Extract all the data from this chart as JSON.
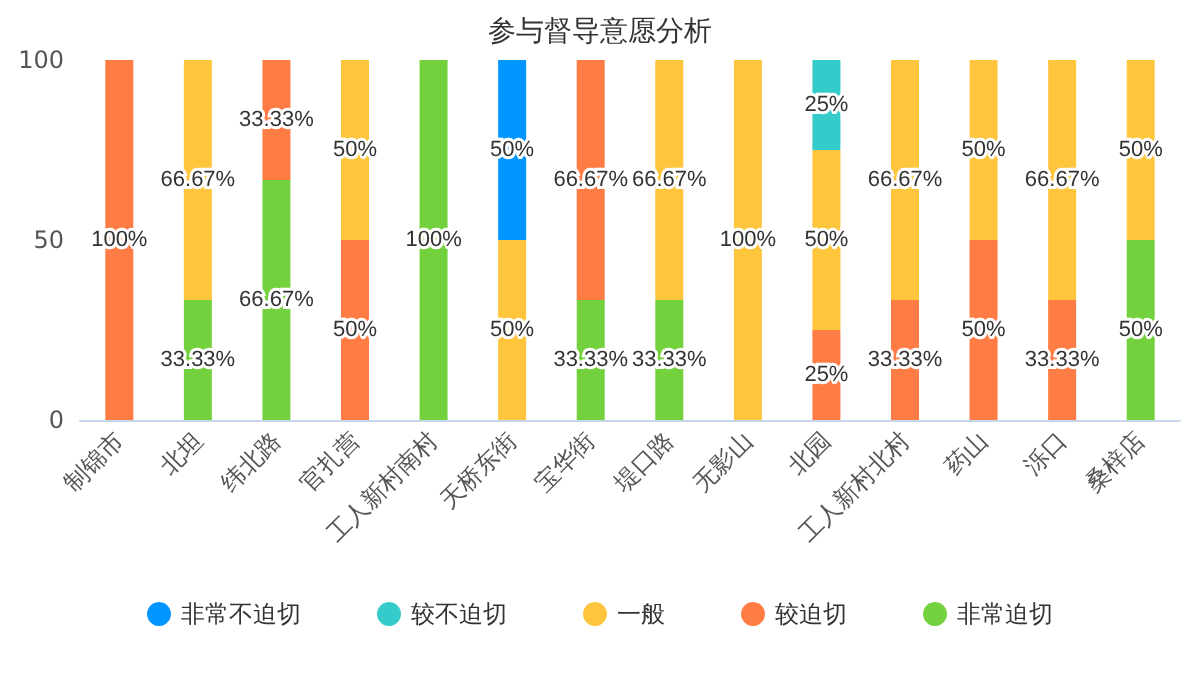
{
  "chart_data": {
    "type": "bar",
    "title": "参与督导意愿分析",
    "stacked": true,
    "legend": "bottom",
    "grid": false,
    "categories": [
      "制锦市",
      "北坦",
      "纬北路",
      "官扎营",
      "工人新村南村",
      "天桥东街",
      "宝华街",
      "堤口路",
      "无影山",
      "北园",
      "工人新村北村",
      "药山",
      "泺口",
      "桑梓店"
    ],
    "ylim": [
      0,
      100
    ],
    "yticks": [
      0,
      50,
      100
    ],
    "series": [
      {
        "name": "非常迫切",
        "color": "#73d13d",
        "values": [
          null,
          33.33,
          66.67,
          null,
          100,
          null,
          33.33,
          33.33,
          null,
          null,
          null,
          null,
          null,
          50
        ],
        "value_labels": [
          null,
          "33.33%",
          "66.67%",
          null,
          "100%",
          null,
          "33.33%",
          "33.33%",
          null,
          null,
          null,
          null,
          null,
          "50%"
        ]
      },
      {
        "name": "较迫切",
        "color": "#ff7c44",
        "values": [
          100,
          null,
          33.33,
          50,
          null,
          null,
          66.67,
          null,
          null,
          25,
          33.33,
          50,
          33.33,
          null
        ],
        "value_labels": [
          "100%",
          null,
          "33.33%",
          "50%",
          null,
          null,
          "66.67%",
          null,
          null,
          "25%",
          "33.33%",
          "50%",
          "33.33%",
          null
        ]
      },
      {
        "name": "一般",
        "color": "#ffc53d",
        "values": [
          null,
          66.67,
          null,
          50,
          null,
          50,
          null,
          66.67,
          100,
          50,
          66.67,
          50,
          66.67,
          50
        ],
        "value_labels": [
          null,
          "66.67%",
          null,
          "50%",
          null,
          "50%",
          null,
          "66.67%",
          "100%",
          "50%",
          "66.67%",
          "50%",
          "66.67%",
          "50%"
        ]
      },
      {
        "name": "较不迫切",
        "color": "#36cbcb",
        "values": [
          null,
          null,
          null,
          null,
          null,
          null,
          null,
          null,
          null,
          25,
          null,
          null,
          null,
          null
        ],
        "value_labels": [
          null,
          null,
          null,
          null,
          null,
          null,
          null,
          null,
          null,
          "25%",
          null,
          null,
          null,
          null
        ]
      },
      {
        "name": "非常不迫切",
        "color": "#0095ff",
        "values": [
          null,
          null,
          null,
          null,
          null,
          50,
          null,
          null,
          null,
          null,
          null,
          null,
          null,
          null
        ],
        "value_labels": [
          null,
          null,
          null,
          null,
          null,
          "50%",
          null,
          null,
          null,
          null,
          null,
          null,
          null,
          null
        ]
      }
    ]
  }
}
